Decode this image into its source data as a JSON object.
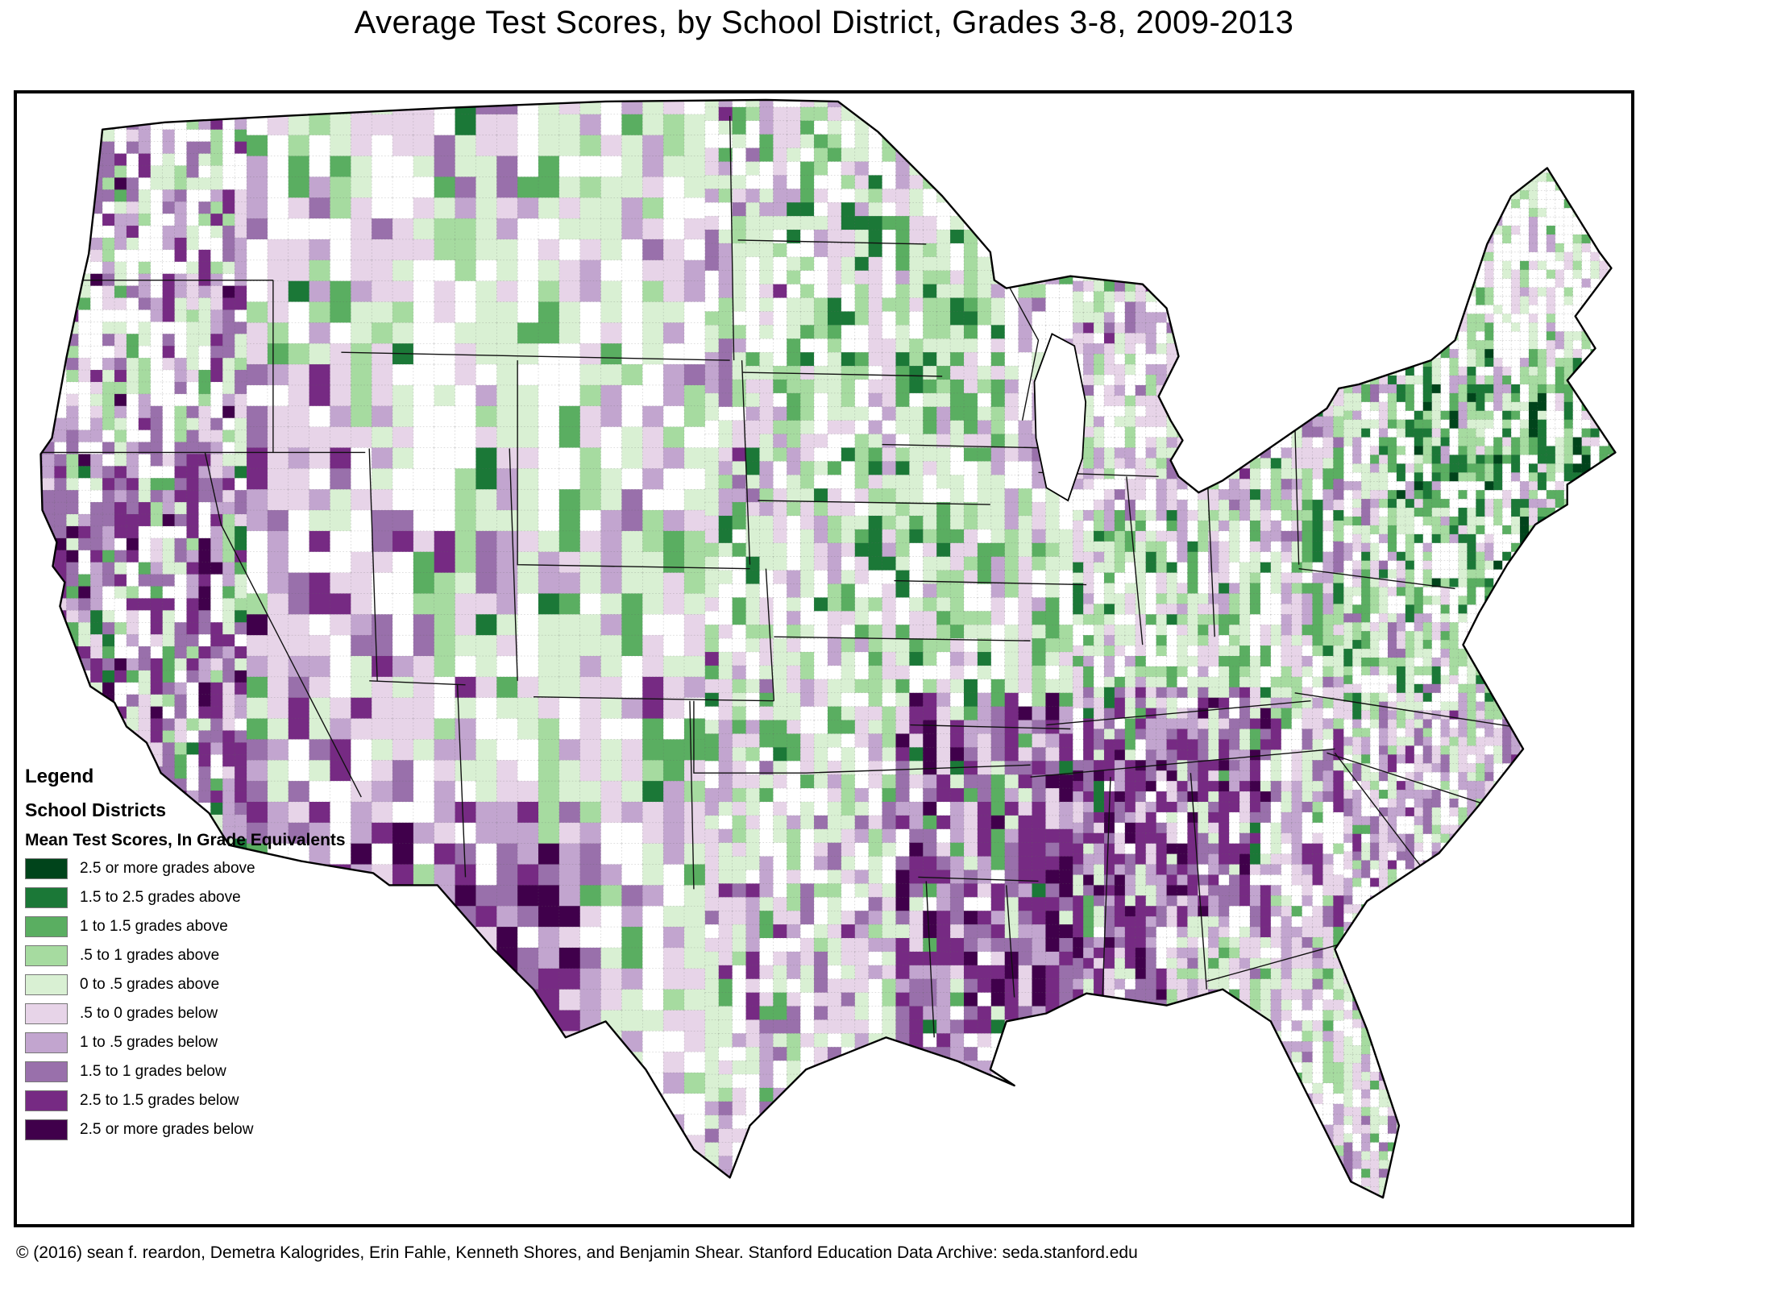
{
  "title": "Average Test Scores, by School District, Grades 3-8, 2009-2013",
  "legend": {
    "heading": "Legend",
    "subheading": "School Districts",
    "scale_title": "Mean Test Scores, In Grade Equivalents",
    "items": [
      {
        "label": "2.5 or more grades above",
        "color": "#00441b"
      },
      {
        "label": "1.5 to 2.5 grades above",
        "color": "#1b7837"
      },
      {
        "label": "1 to 1.5 grades above",
        "color": "#5aae61"
      },
      {
        "label": ".5 to 1 grades above",
        "color": "#a6dba0"
      },
      {
        "label": "0 to .5 grades above",
        "color": "#d9f0d3"
      },
      {
        "label": ".5 to 0 grades below",
        "color": "#e7d4e8"
      },
      {
        "label": "1 to .5 grades below",
        "color": "#c2a5cf"
      },
      {
        "label": "1.5 to 1 grades below",
        "color": "#9970ab"
      },
      {
        "label": "2.5 to 1.5 grades below",
        "color": "#762a83"
      },
      {
        "label": "2.5 or more grades below",
        "color": "#40004b"
      }
    ]
  },
  "map": {
    "region": "Contiguous United States",
    "geography_unit": "school districts",
    "no_data_color": "#ffffff",
    "border_color": "#000000"
  },
  "footer": {
    "credit": "© (2016) sean f. reardon, Demetra Kalogrides, Erin Fahle, Kenneth Shores, and Benjamin Shear. Stanford Education Data Archive: seda.stanford.edu"
  }
}
